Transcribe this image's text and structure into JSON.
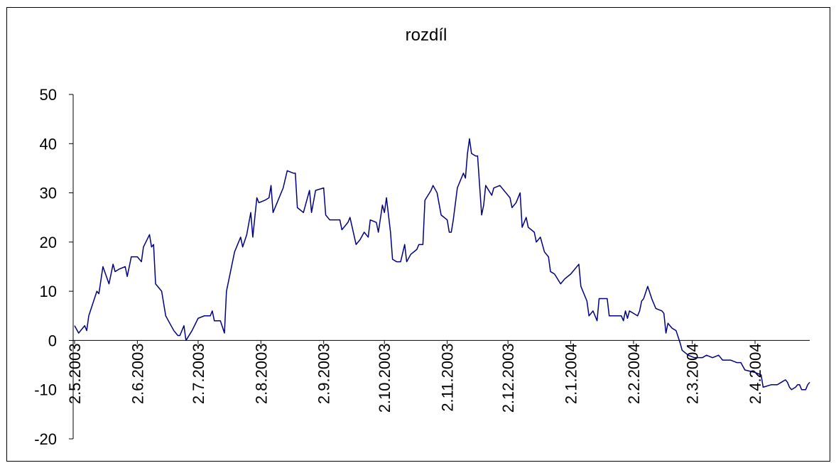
{
  "chart_data": {
    "type": "line",
    "title": "rozdíl",
    "x": [
      "2003-05-02",
      "2003-05-04",
      "2003-05-07",
      "2003-05-08",
      "2003-05-09",
      "2003-05-13",
      "2003-05-14",
      "2003-05-16",
      "2003-05-19",
      "2003-05-21",
      "2003-05-22",
      "2003-05-24",
      "2003-05-27",
      "2003-05-28",
      "2003-05-30",
      "2003-06-02",
      "2003-06-04",
      "2003-06-05",
      "2003-06-08",
      "2003-06-09",
      "2003-06-10",
      "2003-06-11",
      "2003-06-14",
      "2003-06-16",
      "2003-06-18",
      "2003-06-20",
      "2003-06-22",
      "2003-06-23",
      "2003-06-25",
      "2003-06-26",
      "2003-06-29",
      "2003-07-02",
      "2003-07-05",
      "2003-07-08",
      "2003-07-09",
      "2003-07-10",
      "2003-07-13",
      "2003-07-15",
      "2003-07-16",
      "2003-07-18",
      "2003-07-20",
      "2003-07-23",
      "2003-07-24",
      "2003-07-26",
      "2003-07-28",
      "2003-07-29",
      "2003-07-31",
      "2003-08-01",
      "2003-08-04",
      "2003-08-06",
      "2003-08-07",
      "2003-08-08",
      "2003-08-10",
      "2003-08-13",
      "2003-08-15",
      "2003-08-18",
      "2003-08-19",
      "2003-08-20",
      "2003-08-23",
      "2003-08-26",
      "2003-08-27",
      "2003-08-29",
      "2003-09-02",
      "2003-09-03",
      "2003-09-05",
      "2003-09-10",
      "2003-09-11",
      "2003-09-14",
      "2003-09-15",
      "2003-09-18",
      "2003-09-20",
      "2003-09-22",
      "2003-09-24",
      "2003-09-25",
      "2003-09-28",
      "2003-09-29",
      "2003-10-01",
      "2003-10-02",
      "2003-10-03",
      "2003-10-05",
      "2003-10-06",
      "2003-10-08",
      "2003-10-10",
      "2003-10-12",
      "2003-10-13",
      "2003-10-15",
      "2003-10-18",
      "2003-10-19",
      "2003-10-21",
      "2003-10-22",
      "2003-10-25",
      "2003-10-26",
      "2003-10-28",
      "2003-10-30",
      "2003-11-02",
      "2003-11-03",
      "2003-11-04",
      "2003-11-05",
      "2003-11-07",
      "2003-11-10",
      "2003-11-11",
      "2003-11-12",
      "2003-11-13",
      "2003-11-14",
      "2003-11-16",
      "2003-11-17",
      "2003-11-19",
      "2003-11-20",
      "2003-11-21",
      "2003-11-24",
      "2003-11-25",
      "2003-11-28",
      "2003-12-01",
      "2003-12-03",
      "2003-12-04",
      "2003-12-06",
      "2003-12-08",
      "2003-12-09",
      "2003-12-11",
      "2003-12-12",
      "2003-12-15",
      "2003-12-16",
      "2003-12-18",
      "2003-12-20",
      "2003-12-22",
      "2003-12-23",
      "2003-12-25",
      "2003-12-28",
      "2003-12-30",
      "2004-01-02",
      "2004-01-06",
      "2004-01-07",
      "2004-01-10",
      "2004-01-11",
      "2004-01-13",
      "2004-01-15",
      "2004-01-16",
      "2004-01-20",
      "2004-01-21",
      "2004-01-27",
      "2004-01-28",
      "2004-01-29",
      "2004-01-30",
      "2004-01-31",
      "2004-02-04",
      "2004-02-05",
      "2004-02-06",
      "2004-02-07",
      "2004-02-09",
      "2004-02-11",
      "2004-02-13",
      "2004-02-16",
      "2004-02-17",
      "2004-02-18",
      "2004-02-19",
      "2004-02-21",
      "2004-02-23",
      "2004-02-25",
      "2004-02-26",
      "2004-02-29",
      "2004-03-03",
      "2004-03-04",
      "2004-03-07",
      "2004-03-09",
      "2004-03-12",
      "2004-03-15",
      "2004-03-17",
      "2004-03-21",
      "2004-03-24",
      "2004-03-26",
      "2004-03-28",
      "2004-04-02",
      "2004-04-05",
      "2004-04-06",
      "2004-04-10",
      "2004-04-13",
      "2004-04-15",
      "2004-04-17",
      "2004-04-18",
      "2004-04-19",
      "2004-04-20",
      "2004-04-22",
      "2004-04-23",
      "2004-04-24",
      "2004-04-25",
      "2004-04-27",
      "2004-04-28",
      "2004-04-29"
    ],
    "series": [
      {
        "name": "rozdíl",
        "color": "#000080",
        "values": [
          3,
          1.5,
          3,
          2,
          5,
          10,
          9.5,
          15,
          11.5,
          15.5,
          14,
          14.5,
          15,
          13,
          17,
          17,
          16,
          19,
          21.5,
          19,
          19.5,
          11.5,
          10,
          5,
          3.5,
          2,
          1,
          1,
          3,
          0,
          2,
          4.5,
          5,
          5,
          6,
          4,
          4,
          1.5,
          10,
          14,
          18,
          21,
          19,
          21.5,
          26,
          21,
          29,
          28,
          28.5,
          29,
          31.5,
          26,
          28,
          31,
          34.5,
          34,
          34,
          27,
          26,
          30.5,
          26,
          30.5,
          31,
          25.5,
          24.5,
          24.5,
          22.5,
          24,
          25,
          19.5,
          20.5,
          22,
          21,
          24.5,
          24,
          22,
          27.5,
          26,
          29,
          22,
          16.5,
          16,
          16,
          19.5,
          16,
          17.5,
          18.5,
          19.5,
          19.5,
          28.5,
          30.5,
          31.5,
          30,
          25.5,
          24.5,
          22,
          22,
          24.5,
          31,
          34,
          33,
          38,
          41,
          38,
          37.5,
          37.5,
          25.5,
          27.5,
          31.5,
          29.5,
          31,
          31.5,
          30,
          29,
          27,
          28,
          30,
          23,
          25,
          23,
          22,
          20,
          21,
          18,
          17,
          14,
          13.5,
          11.5,
          12.5,
          13.5,
          15.5,
          11,
          8,
          5,
          6,
          4,
          8.5,
          8.5,
          5,
          5,
          4,
          6,
          4.5,
          6,
          5,
          6,
          8,
          8.5,
          11,
          8.5,
          6.5,
          6,
          5.5,
          1.5,
          3.5,
          2.5,
          2,
          -0.5,
          -2,
          -3,
          -3.5,
          -3.5,
          -3.5,
          -3,
          -3.5,
          -3,
          -4,
          -4,
          -4.5,
          -4.5,
          -6,
          -6.5,
          -7,
          -9.5,
          -9,
          -9,
          -8.5,
          -8,
          -8.5,
          -9.5,
          -10,
          -9.5,
          -9,
          -9,
          -10,
          -10,
          -9,
          -8.5
        ]
      }
    ],
    "xlim": [
      "2003-05-02",
      "2004-04-29"
    ],
    "xticks": [
      {
        "value": "2003-05-02",
        "label": "2.5.2003"
      },
      {
        "value": "2003-06-02",
        "label": "2.6.2003"
      },
      {
        "value": "2003-07-02",
        "label": "2.7.2003"
      },
      {
        "value": "2003-08-02",
        "label": "2.8.2003"
      },
      {
        "value": "2003-09-02",
        "label": "2.9.2003"
      },
      {
        "value": "2003-10-02",
        "label": "2.10.2003"
      },
      {
        "value": "2003-11-02",
        "label": "2.11.2003"
      },
      {
        "value": "2003-12-02",
        "label": "2.12.2003"
      },
      {
        "value": "2004-01-02",
        "label": "2.1.2004"
      },
      {
        "value": "2004-02-02",
        "label": "2.2.2004"
      },
      {
        "value": "2004-03-02",
        "label": "2.3.2004"
      },
      {
        "value": "2004-04-02",
        "label": "2.4.2004"
      }
    ],
    "ylim": [
      -20,
      50
    ],
    "yticks": [
      -20,
      -10,
      0,
      10,
      20,
      30,
      40,
      50
    ],
    "grid": false
  }
}
